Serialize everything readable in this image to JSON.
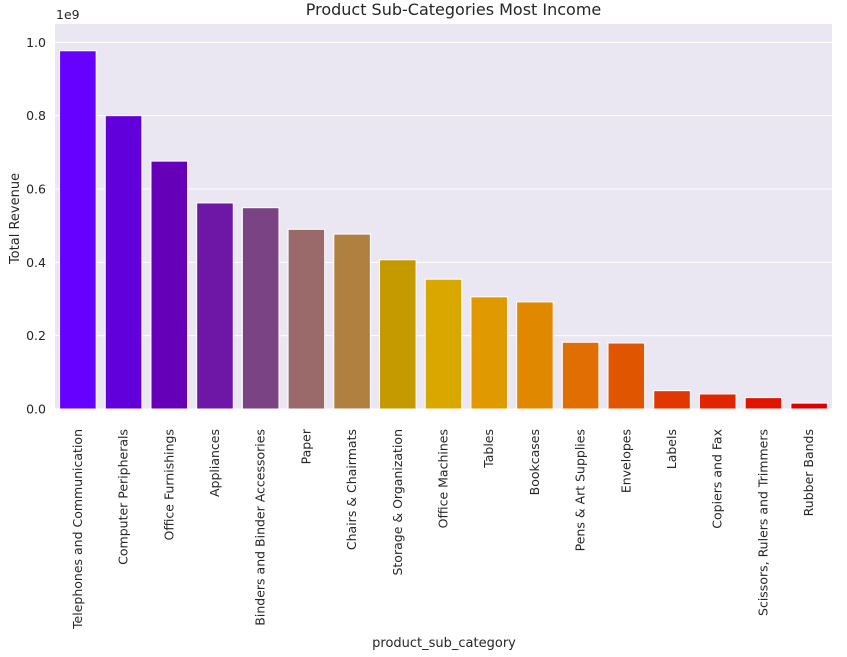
{
  "chart_data": {
    "type": "bar",
    "title": "Product Sub-Categories Most Income",
    "xlabel": "product_sub_category",
    "ylabel": "Total Revenue",
    "y_offset_label": "1e9",
    "ylim": [
      0,
      1.05
    ],
    "y_ticks": [
      0.0,
      0.2,
      0.4,
      0.6,
      0.8,
      1.0
    ],
    "y_tick_labels": [
      "0.0",
      "0.2",
      "0.4",
      "0.6",
      "0.8",
      "1.0"
    ],
    "grid": true,
    "legend": "none",
    "categories": [
      "Telephones and Communication",
      "Computer Peripherals",
      "Office Furnishings",
      "Appliances",
      "Binders and Binder Accessories",
      "Paper",
      "Chairs & Chairmats",
      "Storage & Organization",
      "Office Machines",
      "Tables",
      "Bookcases",
      "Pens & Art Supplies",
      "Envelopes",
      "Labels",
      "Copiers and Fax",
      "Scissors, Rulers and Trimmers",
      "Rubber Bands"
    ],
    "values": [
      0.977,
      0.8,
      0.676,
      0.562,
      0.549,
      0.49,
      0.477,
      0.407,
      0.354,
      0.306,
      0.292,
      0.182,
      0.18,
      0.05,
      0.041,
      0.031,
      0.016
    ],
    "colors": [
      "#6600ff",
      "#6200dc",
      "#6600b8",
      "#6e17a6",
      "#7a4484",
      "#9a6a6a",
      "#b08040",
      "#c49a00",
      "#d8a800",
      "#e09a00",
      "#e08800",
      "#e06e00",
      "#e05500",
      "#e03800",
      "#e02600",
      "#e01500",
      "#dd0000"
    ],
    "plot_background": "#eae7f2",
    "grid_color": "#ffffff"
  }
}
